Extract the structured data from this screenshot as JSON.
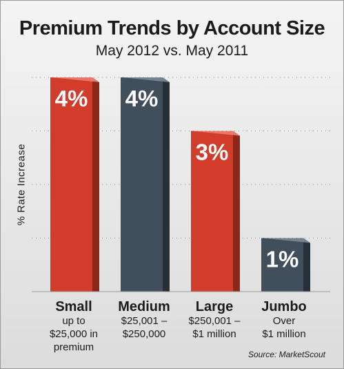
{
  "chart_data": {
    "type": "bar",
    "title": "Premium Trends by Account Size",
    "subtitle": "May 2012 vs. May 2011",
    "ylabel": "% Rate Increase",
    "xlabel": "",
    "ylim": [
      0,
      4
    ],
    "grid": true,
    "categories": [
      "Small",
      "Medium",
      "Large",
      "Jumbo"
    ],
    "category_descriptions": [
      "up to\n$25,000 in\npremium",
      "$25,001 –\n$250,000",
      "$250,001 –\n$1 million",
      "Over\n$1 million"
    ],
    "values": [
      4,
      4,
      3,
      1
    ],
    "data_labels": [
      "4%",
      "4%",
      "3%",
      "1%"
    ],
    "bar_colors": [
      "#d23c2a",
      "#414e5c",
      "#d23c2a",
      "#414e5c"
    ],
    "source": "Source: MarketScout"
  },
  "colors": {
    "red": "#d23c2a",
    "red_side": "#8e2619",
    "red_top": "#e8786a",
    "slate": "#414e5c",
    "slate_side": "#272f38",
    "slate_top": "#76828e",
    "grid": "#8a8a8a",
    "text": "#1b1b1b"
  }
}
